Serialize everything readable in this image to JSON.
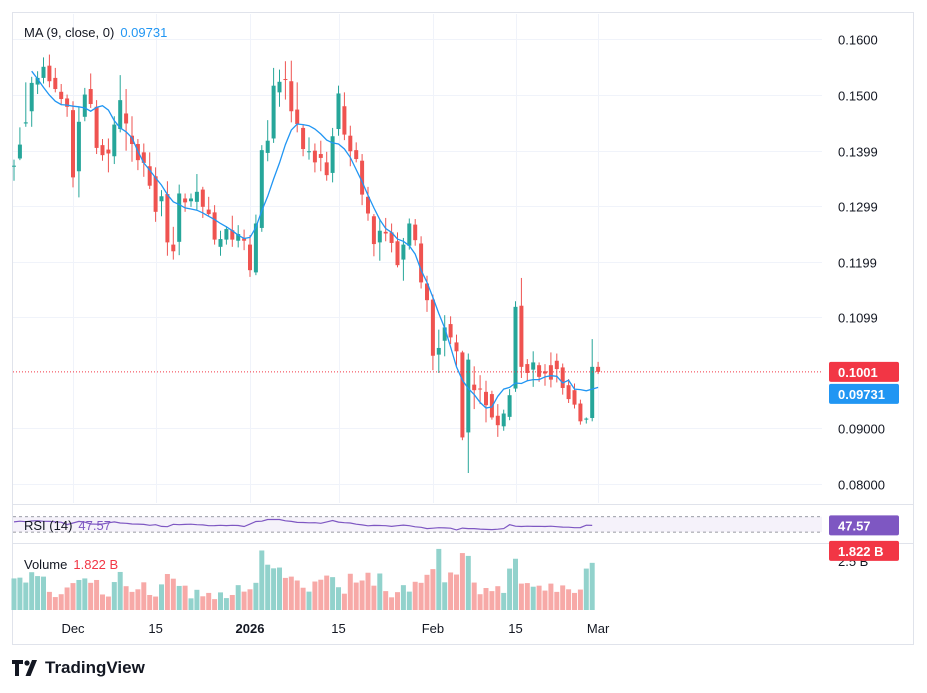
{
  "colors": {
    "up": "#26a69a",
    "down": "#ef5350",
    "up_volume": "#92d2cc",
    "down_volume": "#f7a9a7",
    "ma": "#2196f3",
    "rsi": "#7e57c2",
    "grid": "#f0f3fa",
    "axis_text": "#131722",
    "current_price_badge": "#f23645",
    "ma_badge": "#2196f3",
    "rsi_badge": "#7e57c2",
    "volume_badge": "#f23645"
  },
  "ma_legend": {
    "label": "MA (9, close, 0)",
    "value": "0.09731"
  },
  "rsi_legend": {
    "label": "RSI (14)",
    "value": "47.57"
  },
  "volume_legend": {
    "label": "Volume",
    "value": "1.822 B"
  },
  "branding": {
    "name": "TradingView"
  },
  "chart_data": {
    "type": "candlestick",
    "title": "",
    "price_axis": {
      "range": [
        0.0765,
        0.1645
      ],
      "ticks": [
        "0.1600",
        "0.1500",
        "0.1399",
        "0.1299",
        "0.1199",
        "0.1099",
        "0.09000",
        "0.08000"
      ],
      "tick_values": [
        0.16,
        0.15,
        0.1399,
        0.1299,
        0.1199,
        0.1099,
        0.09,
        0.08
      ],
      "current_price_label": "0.1001",
      "current_price": 0.1001,
      "ma_label": "0.09731",
      "ma_value": 0.09731
    },
    "time_axis": {
      "labels": [
        "Dec",
        "15",
        "2026",
        "15",
        "Feb",
        "15",
        "Mar"
      ],
      "label_bar_index": [
        10,
        24,
        40,
        55,
        71,
        85,
        99
      ],
      "bold": [
        false,
        false,
        true,
        false,
        false,
        false,
        false
      ]
    },
    "rsi_panel": {
      "upper_band": 70,
      "lower_band": 30,
      "current_label": "47.57"
    },
    "volume_panel": {
      "axis_label": "2.5 B",
      "current_label": "1.822 B"
    },
    "ohlc": [
      [
        0.1371,
        0.1383,
        0.1345,
        0.1372
      ],
      [
        0.1385,
        0.1441,
        0.1382,
        0.141
      ],
      [
        0.1448,
        0.1522,
        0.1442,
        0.145
      ],
      [
        0.147,
        0.1532,
        0.1442,
        0.1521
      ],
      [
        0.1518,
        0.1542,
        0.1501,
        0.153
      ],
      [
        0.153,
        0.1567,
        0.152,
        0.155
      ],
      [
        0.1552,
        0.1572,
        0.1513,
        0.1524
      ],
      [
        0.153,
        0.1548,
        0.1504,
        0.151
      ],
      [
        0.1505,
        0.1519,
        0.1481,
        0.1492
      ],
      [
        0.1493,
        0.15,
        0.146,
        0.1478
      ],
      [
        0.1472,
        0.1488,
        0.1333,
        0.1351
      ],
      [
        0.1362,
        0.1478,
        0.1315,
        0.1451
      ],
      [
        0.146,
        0.1512,
        0.1452,
        0.15
      ],
      [
        0.151,
        0.1538,
        0.1476,
        0.1483
      ],
      [
        0.1478,
        0.149,
        0.1393,
        0.1404
      ],
      [
        0.1409,
        0.142,
        0.1381,
        0.1391
      ],
      [
        0.1401,
        0.1421,
        0.136,
        0.1394
      ],
      [
        0.1389,
        0.1461,
        0.1375,
        0.1446
      ],
      [
        0.1438,
        0.1535,
        0.1432,
        0.149
      ],
      [
        0.1466,
        0.151,
        0.1399,
        0.1448
      ],
      [
        0.1426,
        0.1461,
        0.1379,
        0.1411
      ],
      [
        0.1411,
        0.142,
        0.1364,
        0.1382
      ],
      [
        0.1396,
        0.1412,
        0.1352,
        0.1377
      ],
      [
        0.1371,
        0.1396,
        0.133,
        0.1336
      ],
      [
        0.1353,
        0.1369,
        0.1271,
        0.1289
      ],
      [
        0.1308,
        0.1328,
        0.1281,
        0.1317
      ],
      [
        0.1321,
        0.1344,
        0.121,
        0.1234
      ],
      [
        0.123,
        0.1262,
        0.1203,
        0.1218
      ],
      [
        0.1235,
        0.1338,
        0.1211,
        0.1322
      ],
      [
        0.1313,
        0.1322,
        0.1289,
        0.1306
      ],
      [
        0.1308,
        0.1322,
        0.1298,
        0.1313
      ],
      [
        0.1307,
        0.1357,
        0.1293,
        0.1325
      ],
      [
        0.1329,
        0.1334,
        0.1278,
        0.1298
      ],
      [
        0.1293,
        0.1316,
        0.1282,
        0.1285
      ],
      [
        0.1288,
        0.1301,
        0.123,
        0.1239
      ],
      [
        0.1226,
        0.1255,
        0.121,
        0.124
      ],
      [
        0.1239,
        0.1263,
        0.123,
        0.1258
      ],
      [
        0.1256,
        0.1282,
        0.1226,
        0.1239
      ],
      [
        0.1237,
        0.1265,
        0.1225,
        0.1249
      ],
      [
        0.1241,
        0.1257,
        0.122,
        0.1237
      ],
      [
        0.123,
        0.1247,
        0.1172,
        0.1184
      ],
      [
        0.118,
        0.1284,
        0.1175,
        0.1268
      ],
      [
        0.126,
        0.1409,
        0.1253,
        0.14
      ],
      [
        0.1395,
        0.1454,
        0.138,
        0.1417
      ],
      [
        0.1421,
        0.1548,
        0.1413,
        0.1516
      ],
      [
        0.1504,
        0.1545,
        0.1478,
        0.1523
      ],
      [
        0.1528,
        0.156,
        0.1491,
        0.1527
      ],
      [
        0.1524,
        0.1561,
        0.145,
        0.147
      ],
      [
        0.1473,
        0.1522,
        0.1432,
        0.1447
      ],
      [
        0.144,
        0.1446,
        0.1389,
        0.1402
      ],
      [
        0.1398,
        0.1423,
        0.1383,
        0.1398
      ],
      [
        0.1399,
        0.1412,
        0.136,
        0.1378
      ],
      [
        0.1393,
        0.1417,
        0.1362,
        0.1386
      ],
      [
        0.1378,
        0.1397,
        0.1345,
        0.1355
      ],
      [
        0.1359,
        0.144,
        0.1342,
        0.1425
      ],
      [
        0.1438,
        0.1516,
        0.1426,
        0.1502
      ],
      [
        0.1479,
        0.1504,
        0.1418,
        0.1428
      ],
      [
        0.1426,
        0.1444,
        0.1371,
        0.1398
      ],
      [
        0.14,
        0.1414,
        0.1378,
        0.1384
      ],
      [
        0.1381,
        0.1393,
        0.1301,
        0.132
      ],
      [
        0.1316,
        0.1334,
        0.1273,
        0.1286
      ],
      [
        0.1281,
        0.1285,
        0.1209,
        0.1231
      ],
      [
        0.1234,
        0.1276,
        0.1201,
        0.1255
      ],
      [
        0.1253,
        0.1278,
        0.1236,
        0.125
      ],
      [
        0.1252,
        0.1268,
        0.1216,
        0.1233
      ],
      [
        0.1236,
        0.1252,
        0.1189,
        0.1193
      ],
      [
        0.1203,
        0.1242,
        0.1165,
        0.123
      ],
      [
        0.1228,
        0.1277,
        0.1221,
        0.1268
      ],
      [
        0.1266,
        0.1276,
        0.1228,
        0.1238
      ],
      [
        0.1232,
        0.1245,
        0.1151,
        0.1162
      ],
      [
        0.116,
        0.1174,
        0.1109,
        0.113
      ],
      [
        0.1131,
        0.114,
        0.1004,
        0.103
      ],
      [
        0.1032,
        0.1077,
        0.0999,
        0.1044
      ],
      [
        0.1057,
        0.1103,
        0.1029,
        0.1081
      ],
      [
        0.1087,
        0.1101,
        0.1051,
        0.1063
      ],
      [
        0.1054,
        0.1068,
        0.1012,
        0.1038
      ],
      [
        0.1036,
        0.1039,
        0.0878,
        0.0883
      ],
      [
        0.0892,
        0.1034,
        0.0819,
        0.1023
      ],
      [
        0.0978,
        0.1011,
        0.0934,
        0.0968
      ],
      [
        0.0971,
        0.0995,
        0.0943,
        0.097
      ],
      [
        0.0965,
        0.0985,
        0.091,
        0.0941
      ],
      [
        0.0961,
        0.0967,
        0.0915,
        0.0919
      ],
      [
        0.0922,
        0.0943,
        0.0884,
        0.0905
      ],
      [
        0.0903,
        0.0933,
        0.0895,
        0.0926
      ],
      [
        0.092,
        0.097,
        0.0914,
        0.0959
      ],
      [
        0.0971,
        0.1128,
        0.0965,
        0.1118
      ],
      [
        0.112,
        0.117,
        0.099,
        0.101
      ],
      [
        0.1015,
        0.1024,
        0.0985,
        0.0999
      ],
      [
        0.1005,
        0.1038,
        0.0974,
        0.1018
      ],
      [
        0.1013,
        0.1018,
        0.0983,
        0.0992
      ],
      [
        0.1002,
        0.1015,
        0.0976,
        0.0998
      ],
      [
        0.1013,
        0.1036,
        0.0973,
        0.0987
      ],
      [
        0.1021,
        0.1034,
        0.0982,
        0.1006
      ],
      [
        0.1009,
        0.1016,
        0.096,
        0.0972
      ],
      [
        0.0977,
        0.0988,
        0.0945,
        0.0952
      ],
      [
        0.0968,
        0.098,
        0.0935,
        0.0942
      ],
      [
        0.0944,
        0.0951,
        0.0906,
        0.0912
      ],
      [
        0.0915,
        0.0919,
        0.0908,
        0.0917
      ],
      [
        0.0918,
        0.106,
        0.0912,
        0.101
      ],
      [
        0.101,
        0.1019,
        0.0997,
        0.1001
      ]
    ],
    "ma9": [
      0.1542,
      0.1528,
      0.1513,
      0.1499,
      0.1488,
      0.1482,
      0.1481,
      0.1479,
      0.1478,
      0.1476,
      0.147,
      0.1477,
      0.148,
      0.1472,
      0.1453,
      0.144,
      0.1433,
      0.1422,
      0.1398,
      0.1377,
      0.1364,
      0.135,
      0.1337,
      0.132,
      0.1307,
      0.1302,
      0.1296,
      0.1294,
      0.1292,
      0.1287,
      0.1281,
      0.1275,
      0.1268,
      0.1262,
      0.1255,
      0.1247,
      0.1241,
      0.1243,
      0.1261,
      0.1291,
      0.1317,
      0.1348,
      0.1377,
      0.141,
      0.1436,
      0.1447,
      0.1446,
      0.1444,
      0.1438,
      0.1429,
      0.1418,
      0.1413,
      0.1411,
      0.1402,
      0.1387,
      0.1365,
      0.1343,
      0.1319,
      0.1296,
      0.1275,
      0.1259,
      0.1252,
      0.124,
      0.1236,
      0.1228,
      0.1213,
      0.1184,
      0.1162,
      0.1135,
      0.1106,
      0.108,
      0.1046,
      0.101,
      0.0986,
      0.0971,
      0.096,
      0.0946,
      0.0936,
      0.0938,
      0.0957,
      0.097,
      0.0973,
      0.0981,
      0.098,
      0.0985,
      0.0987,
      0.0987,
      0.0992,
      0.0994,
      0.0993,
      0.0981,
      0.0986,
      0.097,
      0.0969,
      0.0967,
      0.097,
      0.0973
    ],
    "rsi": [
      56.5,
      58.4,
      57.2,
      59.0,
      59.6,
      58.2,
      57.9,
      56.8,
      55.7,
      49.6,
      53.7,
      57.9,
      56.1,
      51.1,
      50.7,
      51.1,
      54.2,
      56.5,
      53.8,
      52.8,
      51.1,
      50.8,
      50.1,
      47.8,
      49.4,
      45.0,
      44.2,
      50.3,
      49.4,
      50.0,
      50.6,
      49.4,
      48.7,
      46.8,
      46.9,
      47.8,
      47.0,
      47.7,
      47.1,
      44.7,
      50.8,
      57.7,
      58.4,
      62.7,
      62.8,
      62.8,
      59.3,
      57.9,
      55.3,
      55.1,
      54.1,
      54.5,
      52.8,
      56.5,
      60.2,
      56.0,
      54.5,
      53.6,
      50.5,
      48.9,
      46.5,
      47.6,
      47.3,
      46.7,
      44.9,
      46.6,
      48.3,
      46.7,
      43.8,
      42.6,
      39.3,
      40.1,
      41.5,
      40.9,
      40.1,
      35.8,
      40.6,
      39.2,
      39.1,
      37.8,
      37.1,
      36.6,
      37.7,
      39.3,
      49.4,
      45.3,
      44.6,
      45.4,
      44.9,
      45.1,
      44.6,
      45.4,
      44.1,
      43.2,
      42.8,
      41.4,
      41.7,
      47.9,
      47.57
    ],
    "volume": [
      1.22,
      1.25,
      1.06,
      1.46,
      1.31,
      1.29,
      0.7,
      0.5,
      0.61,
      0.87,
      1.04,
      1.16,
      1.22,
      1.05,
      1.16,
      0.6,
      0.52,
      1.08,
      1.47,
      0.92,
      0.7,
      0.8,
      1.07,
      0.58,
      0.52,
      0.99,
      1.39,
      1.21,
      0.93,
      0.94,
      0.45,
      0.78,
      0.53,
      0.66,
      0.42,
      0.68,
      0.46,
      0.58,
      0.96,
      0.71,
      0.8,
      1.05,
      2.3,
      1.75,
      1.61,
      1.64,
      1.24,
      1.29,
      1.14,
      0.86,
      0.71,
      1.1,
      1.17,
      1.33,
      1.27,
      0.88,
      0.63,
      1.4,
      1.06,
      1.14,
      1.44,
      0.94,
      1.41,
      0.73,
      0.49,
      0.69,
      0.96,
      0.71,
      1.09,
      1.05,
      1.36,
      1.58,
      2.36,
      1.07,
      1.45,
      1.37,
      2.2,
      2.09,
      1.06,
      0.61,
      0.85,
      0.73,
      0.92,
      0.66,
      1.6,
      1.98,
      1.02,
      1.04,
      0.9,
      0.94,
      0.75,
      1.02,
      0.7,
      0.95,
      0.8,
      0.66,
      0.79,
      1.6,
      1.822
    ]
  }
}
